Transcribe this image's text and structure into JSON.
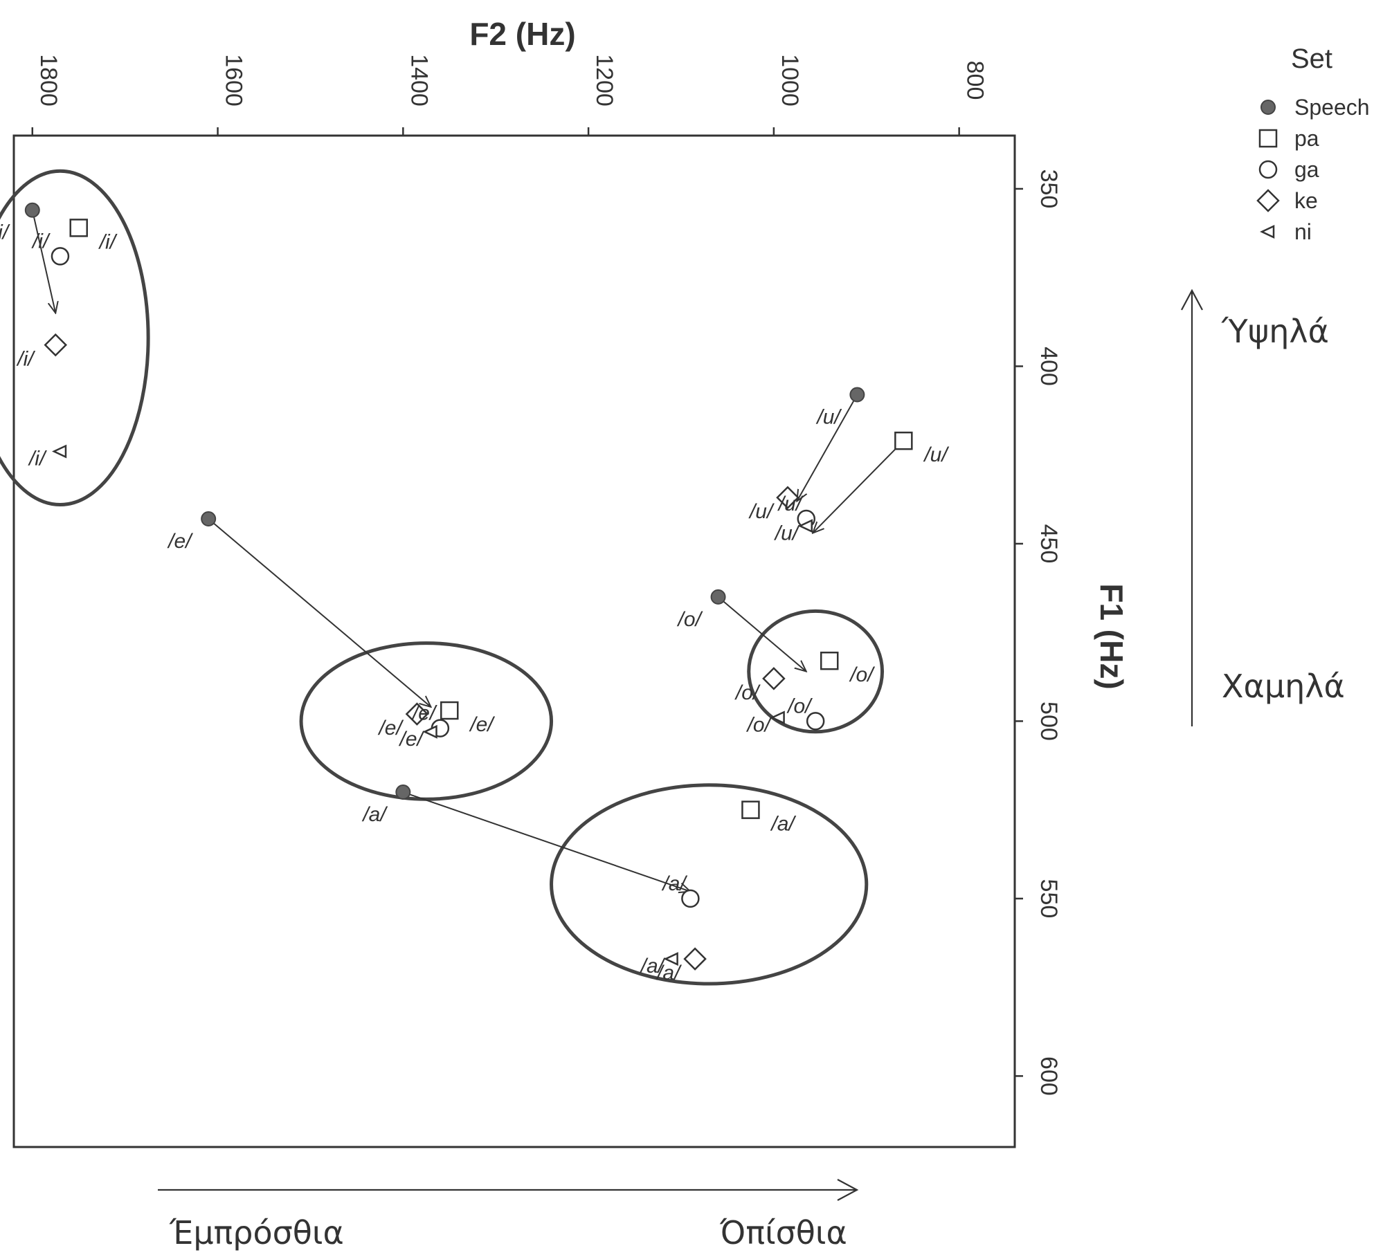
{
  "chart_data": {
    "type": "scatter",
    "title": "",
    "xlabel": "F2 (Hz)",
    "ylabel": "F1 (Hz)",
    "x_axis_position": "top",
    "y_axis_position": "right",
    "x_reversed": true,
    "y_reversed": true,
    "xlim": [
      1820,
      740
    ],
    "ylim": [
      335,
      620
    ],
    "xticks": [
      1800,
      1600,
      1400,
      1200,
      1000,
      800
    ],
    "yticks": [
      350,
      400,
      450,
      500,
      550,
      600
    ],
    "grid": false,
    "legend": {
      "title": "Set",
      "position": "top-right",
      "entries": [
        "Speech",
        "pa",
        "ga",
        "ke",
        "ni"
      ]
    },
    "series": [
      {
        "name": "Speech",
        "marker": "filled-circle",
        "points": [
          {
            "x": 1800,
            "y": 356,
            "label": "/i/"
          },
          {
            "x": 1610,
            "y": 443,
            "label": "/e/"
          },
          {
            "x": 1400,
            "y": 520,
            "label": "/a/"
          },
          {
            "x": 1060,
            "y": 465,
            "label": "/o/"
          },
          {
            "x": 910,
            "y": 408,
            "label": "/u/"
          }
        ]
      },
      {
        "name": "pa",
        "marker": "square",
        "points": [
          {
            "x": 1750,
            "y": 361,
            "label": "/i/"
          },
          {
            "x": 1350,
            "y": 497,
            "label": "/e/"
          },
          {
            "x": 1025,
            "y": 525,
            "label": "/a/"
          },
          {
            "x": 940,
            "y": 483,
            "label": "/o/"
          },
          {
            "x": 860,
            "y": 421,
            "label": "/u/"
          }
        ]
      },
      {
        "name": "ga",
        "marker": "circle",
        "points": [
          {
            "x": 1770,
            "y": 369,
            "label": "/i/"
          },
          {
            "x": 1360,
            "y": 502,
            "label": "/e/"
          },
          {
            "x": 1090,
            "y": 550,
            "label": "/a/"
          },
          {
            "x": 955,
            "y": 500,
            "label": "/o/"
          },
          {
            "x": 965,
            "y": 443,
            "label": "/u/"
          }
        ]
      },
      {
        "name": "ke",
        "marker": "diamond",
        "points": [
          {
            "x": 1775,
            "y": 394,
            "label": "/i/"
          },
          {
            "x": 1385,
            "y": 498,
            "label": "/e/"
          },
          {
            "x": 1085,
            "y": 567,
            "label": "/a/"
          },
          {
            "x": 985,
            "y": 437,
            "label": "/u/"
          },
          {
            "x": 1000,
            "y": 488,
            "label": "/o/"
          }
        ]
      },
      {
        "name": "ni",
        "marker": "triangle-left",
        "points": [
          {
            "x": 1770,
            "y": 424,
            "label": "/i/"
          },
          {
            "x": 1370,
            "y": 503,
            "label": "/e/"
          },
          {
            "x": 1110,
            "y": 567,
            "label": "/a/"
          },
          {
            "x": 995,
            "y": 499,
            "label": "/o/"
          },
          {
            "x": 965,
            "y": 445,
            "label": "/u/"
          }
        ]
      }
    ],
    "arrows": [
      {
        "from": [
          1800,
          356
        ],
        "to": [
          1775,
          385
        ]
      },
      {
        "from": [
          1610,
          443
        ],
        "to": [
          1370,
          496
        ]
      },
      {
        "from": [
          1400,
          520
        ],
        "to": [
          1090,
          548
        ]
      },
      {
        "from": [
          1060,
          465
        ],
        "to": [
          965,
          486
        ]
      },
      {
        "from": [
          910,
          408
        ],
        "to": [
          975,
          438
        ]
      },
      {
        "from": [
          860,
          421
        ],
        "to": [
          958,
          447
        ]
      }
    ],
    "clusters": [
      {
        "vowel": "/i/",
        "cx": 1770,
        "cy": 392,
        "rx": 95,
        "ry": 47
      },
      {
        "vowel": "/e/",
        "cx": 1375,
        "cy": 500,
        "rx": 135,
        "ry": 22
      },
      {
        "vowel": "/a/",
        "cx": 1070,
        "cy": 546,
        "rx": 170,
        "ry": 28
      },
      {
        "vowel": "/o/",
        "cx": 955,
        "cy": 486,
        "rx": 72,
        "ry": 17
      }
    ],
    "direction_labels": {
      "horizontal_left": "Έμπρόσθια",
      "horizontal_right": "Όπίσθια",
      "vertical_top": "Ύψηλά",
      "vertical_bottom": "Χαμηλά"
    }
  }
}
